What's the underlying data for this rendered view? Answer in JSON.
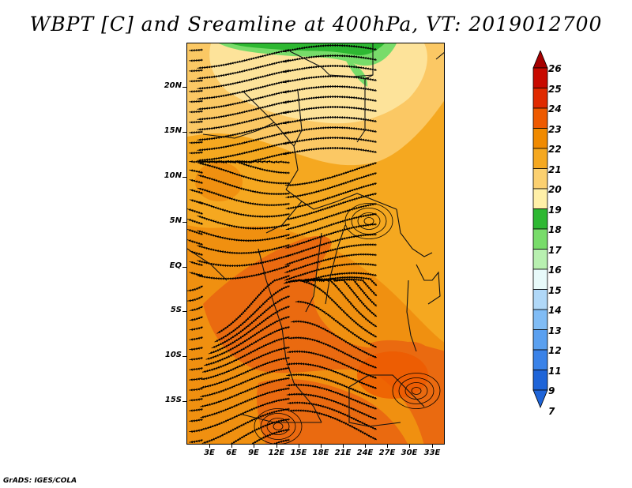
{
  "title": "WBPT [C] and Sreamline at 400hPa, VT: 2019012700",
  "credit": "GrADS: IGES/COLA",
  "lat_labels": [
    "20N",
    "15N",
    "10N",
    "5N",
    "EQ",
    "5S",
    "10S",
    "15S"
  ],
  "lon_labels": [
    "3E",
    "6E",
    "9E",
    "12E",
    "15E",
    "18E",
    "21E",
    "24E",
    "27E",
    "30E",
    "33E"
  ],
  "colorbar": {
    "labels": [
      "26",
      "25",
      "24",
      "23",
      "22",
      "21",
      "20",
      "19",
      "18",
      "17",
      "16",
      "15",
      "14",
      "13",
      "12",
      "11",
      "9",
      "7"
    ],
    "colors": [
      "#a50000",
      "#c80a00",
      "#e02a00",
      "#ee5a00",
      "#f08a00",
      "#f5a820",
      "#fbd070",
      "#fff0a8",
      "#2eb832",
      "#78dc6a",
      "#b8f0b0",
      "#e8fafa",
      "#b0d8f8",
      "#80bcf5",
      "#5aa0f0",
      "#3a82e8",
      "#1e64d8"
    ]
  }
}
